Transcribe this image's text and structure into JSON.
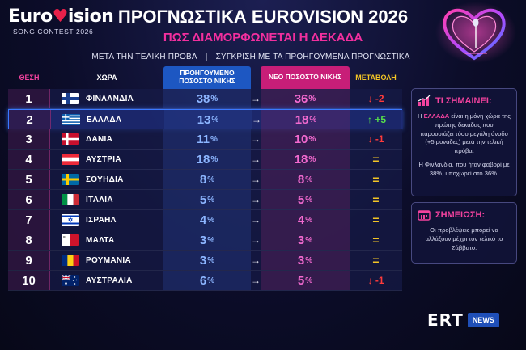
{
  "logo": {
    "wordmark_pre": "Euro",
    "wordmark_heart": "♥",
    "wordmark_post": "ision",
    "subtitle": "SONG CONTEST 2026"
  },
  "header": {
    "title": "ΠΡΟΓΝΩΣΤΙΚΑ EUROVISION 2026",
    "subtitle": "ΠΩΣ ΔΙΑΜΟΡΦΩΝΕΤΑΙ Η ΔΕΚΑΔΑ",
    "caption_left": "ΜΕΤΑ ΤΗΝ ΤΕΛΙΚΗ ΠΡΟΒΑ",
    "caption_sep": "|",
    "caption_right": "ΣΥΓΚΡΙΣΗ ΜΕ ΤΑ ΠΡΟΗΓΟΥΜΕΝΑ ΠΡΟΓΝΩΣΤΙΚΑ"
  },
  "table": {
    "headers": {
      "position": "ΘΕΣΗ",
      "country": "ΧΩΡΑ",
      "previous": "ΠΡΟΗΓΟΥΜΕΝΟ ΠΟΣΟΣΤΟ ΝΙΚΗΣ",
      "new": "ΝΕΟ ΠΟΣΟΣΤΟ ΝΙΚΗΣ",
      "change": "ΜΕΤΑΒΟΛΗ"
    },
    "arrow": "→",
    "percent_sign": "%",
    "rows": [
      {
        "position": "1",
        "country": "ΦΙΝΛΑΝΔΙΑ",
        "flag": "finland-flag",
        "previous": "38",
        "new": "36",
        "change": "↓ -2",
        "direction": "down"
      },
      {
        "position": "2",
        "country": "ΕΛΛΑΔΑ",
        "flag": "greece-flag",
        "previous": "13",
        "new": "18",
        "change": "↑ +5",
        "direction": "up",
        "highlight": true
      },
      {
        "position": "3",
        "country": "ΔΑΝΙΑ",
        "flag": "denmark-flag",
        "previous": "11",
        "new": "10",
        "change": "↓ -1",
        "direction": "down"
      },
      {
        "position": "4",
        "country": "ΑΥΣΤΡΙΑ",
        "flag": "austria-flag",
        "previous": "18",
        "new": "18",
        "change": "=",
        "direction": "eq"
      },
      {
        "position": "5",
        "country": "ΣΟΥΗΔΙΑ",
        "flag": "sweden-flag",
        "previous": "8",
        "new": "8",
        "change": "=",
        "direction": "eq"
      },
      {
        "position": "6",
        "country": "ΙΤΑΛΙΑ",
        "flag": "italy-flag",
        "previous": "5",
        "new": "5",
        "change": "=",
        "direction": "eq"
      },
      {
        "position": "7",
        "country": "ΙΣΡΑΗΛ",
        "flag": "israel-flag",
        "previous": "4",
        "new": "4",
        "change": "=",
        "direction": "eq"
      },
      {
        "position": "8",
        "country": "ΜΑΛΤΑ",
        "flag": "malta-flag",
        "previous": "3",
        "new": "3",
        "change": "=",
        "direction": "eq"
      },
      {
        "position": "9",
        "country": "ΡΟΥΜΑΝΙΑ",
        "flag": "romania-flag",
        "previous": "3",
        "new": "3",
        "change": "=",
        "direction": "eq"
      },
      {
        "position": "10",
        "country": "ΑΥΣΤΡΑΛΙΑ",
        "flag": "australia-flag",
        "previous": "6",
        "new": "5",
        "change": "↓ -1",
        "direction": "down"
      }
    ]
  },
  "side": {
    "meaning": {
      "icon": "bar-chart-icon",
      "title": "ΤΙ ΣΗΜΑΙΝΕΙ:",
      "p1_pre": "Η ",
      "p1_hot": "ΕΛΛΑΔΑ",
      "p1_post": " είναι η μόνη χώρα της πρώτης δεκάδας που παρουσιάζει τόσο μεγάλη άνοδο (+5 μονάδες) μετά την τελική πρόβα.",
      "p2": "Η Φινλανδία, που ήταν φαβορί με 38%, υποχωρεί στο 36%."
    },
    "note": {
      "icon": "calendar-icon",
      "title": "ΣΗΜΕΙΩΣΗ:",
      "text": "Οι προβλέψεις μπορεί να αλλάξουν μέχρι τον τελικό το Σάββατο."
    }
  },
  "footer": {
    "brand": "ERT",
    "badge": "NEWS"
  },
  "colors": {
    "pink": "#f2429e",
    "blue_header": "#1d57c2",
    "magenta_header": "#c81e78",
    "gold": "#f3c526",
    "down": "#ff3b3b",
    "up": "#57e04a"
  }
}
